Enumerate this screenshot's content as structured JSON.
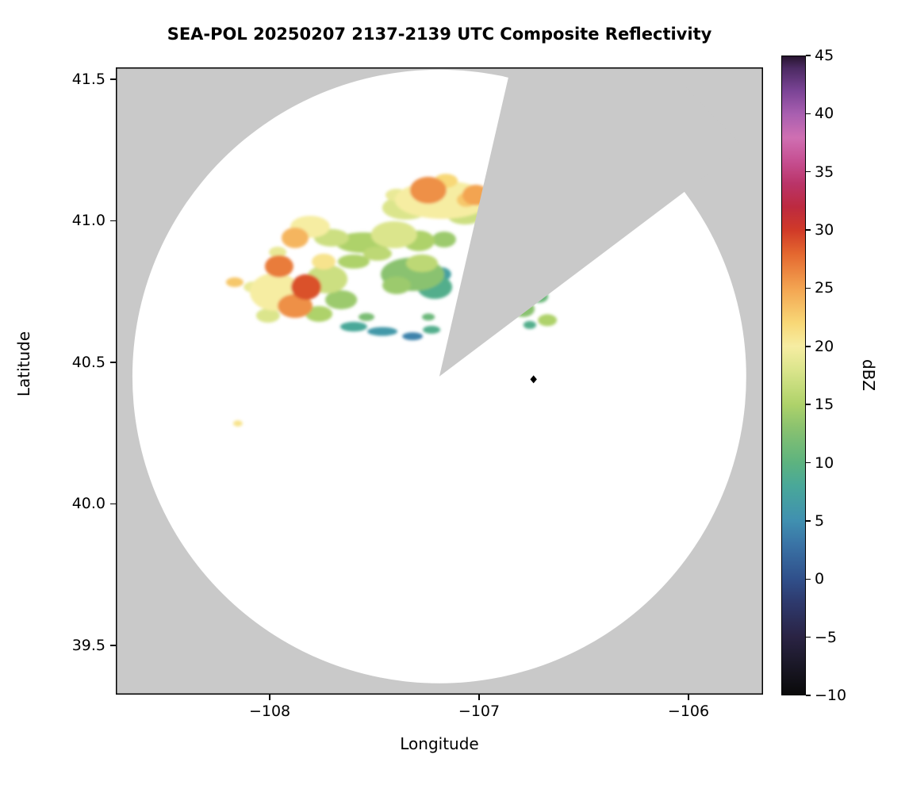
{
  "chart_data": {
    "type": "heatmap",
    "title": "SEA-POL 20250207 2137-2139 UTC Composite Reflectivity",
    "xlabel": "Longitude",
    "ylabel": "Latitude",
    "x_range": [
      -108.735,
      -105.644
    ],
    "y_range": [
      39.326,
      41.542
    ],
    "grid": false,
    "x_ticks": [
      {
        "value": -108,
        "label": "−108"
      },
      {
        "value": -107,
        "label": "−107"
      },
      {
        "value": -106,
        "label": "−106"
      }
    ],
    "y_ticks": [
      {
        "value": 41.5,
        "label": "41.5"
      },
      {
        "value": 41.0,
        "label": "41.0"
      },
      {
        "value": 40.5,
        "label": "40.5"
      },
      {
        "value": 40.0,
        "label": "40.0"
      },
      {
        "value": 39.5,
        "label": "39.5"
      }
    ],
    "outside_range_color": "#c9c9c9",
    "inside_range_color": "#ffffff",
    "radar": {
      "center_lon": -107.19,
      "center_lat": 40.45,
      "range_radius_deg_lat": 1.084,
      "blocked_sector_azimuth_deg": [
        13,
        53
      ]
    },
    "marker": {
      "lon": -106.74,
      "lat": 40.44,
      "symbol": "diamond",
      "color": "#000000"
    },
    "colorbar": {
      "label": "dBZ",
      "min": -10,
      "max": 45,
      "ticks": [
        {
          "value": -10,
          "label": "−10"
        },
        {
          "value": -5,
          "label": "−5"
        },
        {
          "value": 0,
          "label": "0"
        },
        {
          "value": 5,
          "label": "5"
        },
        {
          "value": 10,
          "label": "10"
        },
        {
          "value": 15,
          "label": "15"
        },
        {
          "value": 20,
          "label": "20"
        },
        {
          "value": 25,
          "label": "25"
        },
        {
          "value": 30,
          "label": "30"
        },
        {
          "value": 35,
          "label": "35"
        },
        {
          "value": 40,
          "label": "40"
        },
        {
          "value": 45,
          "label": "45"
        }
      ],
      "stops": [
        [
          -10,
          "#0a0a0a"
        ],
        [
          -7,
          "#1d1a2c"
        ],
        [
          -5,
          "#2a2344"
        ],
        [
          -2,
          "#2e3a6e"
        ],
        [
          0,
          "#30508b"
        ],
        [
          3,
          "#3a74a6"
        ],
        [
          5,
          "#4090b0"
        ],
        [
          8,
          "#49a899"
        ],
        [
          10,
          "#5db37f"
        ],
        [
          13,
          "#8ac26f"
        ],
        [
          15,
          "#aed26a"
        ],
        [
          18,
          "#dbe58c"
        ],
        [
          20,
          "#f6eda2"
        ],
        [
          22,
          "#f8d877"
        ],
        [
          25,
          "#f3a451"
        ],
        [
          28,
          "#e4672f"
        ],
        [
          30,
          "#d03a28"
        ],
        [
          32,
          "#bd2a3f"
        ],
        [
          34,
          "#ba3468"
        ],
        [
          36,
          "#c65092"
        ],
        [
          38,
          "#cf6fb2"
        ],
        [
          40,
          "#a95fb0"
        ],
        [
          42,
          "#7b4496"
        ],
        [
          44,
          "#4b2a62"
        ],
        [
          45,
          "#27142f"
        ]
      ]
    },
    "echo_fields": [
      "lon",
      "lat",
      "width_deg",
      "height_deg",
      "dbz"
    ],
    "echoes": [
      [
        -107.175,
        41.074,
        0.455,
        0.134,
        20
      ],
      [
        -107.243,
        41.108,
        0.174,
        0.095,
        26
      ],
      [
        -107.016,
        41.091,
        0.129,
        0.073,
        25
      ],
      [
        -107.349,
        41.046,
        0.227,
        0.084,
        18
      ],
      [
        -107.068,
        41.018,
        0.167,
        0.062,
        17
      ],
      [
        -107.159,
        41.141,
        0.114,
        0.05,
        22
      ],
      [
        -107.879,
        40.94,
        0.129,
        0.073,
        24
      ],
      [
        -107.807,
        40.979,
        0.189,
        0.078,
        20
      ],
      [
        -107.705,
        40.94,
        0.167,
        0.062,
        17
      ],
      [
        -107.553,
        40.923,
        0.265,
        0.073,
        15
      ],
      [
        -107.406,
        40.951,
        0.22,
        0.095,
        18
      ],
      [
        -107.288,
        40.929,
        0.152,
        0.073,
        15
      ],
      [
        -107.962,
        40.889,
        0.083,
        0.039,
        19
      ],
      [
        -107.318,
        40.811,
        0.303,
        0.118,
        13
      ],
      [
        -107.212,
        40.766,
        0.167,
        0.084,
        9
      ],
      [
        -107.273,
        40.85,
        0.152,
        0.062,
        16
      ],
      [
        -107.182,
        40.811,
        0.098,
        0.05,
        7
      ],
      [
        -107.394,
        40.772,
        0.136,
        0.062,
        14
      ],
      [
        -107.955,
        40.839,
        0.136,
        0.078,
        27
      ],
      [
        -107.826,
        40.766,
        0.144,
        0.09,
        29
      ],
      [
        -107.879,
        40.699,
        0.167,
        0.084,
        26
      ],
      [
        -107.974,
        40.749,
        0.242,
        0.134,
        20
      ],
      [
        -107.727,
        40.794,
        0.197,
        0.101,
        17
      ],
      [
        -107.659,
        40.721,
        0.152,
        0.067,
        14
      ],
      [
        -108.167,
        40.783,
        0.083,
        0.034,
        23
      ],
      [
        -108.076,
        40.766,
        0.098,
        0.039,
        19
      ],
      [
        -108.008,
        40.665,
        0.114,
        0.05,
        18
      ],
      [
        -107.765,
        40.671,
        0.129,
        0.056,
        15
      ],
      [
        -107.599,
        40.626,
        0.129,
        0.034,
        8
      ],
      [
        -107.462,
        40.609,
        0.144,
        0.031,
        6
      ],
      [
        -107.318,
        40.592,
        0.098,
        0.028,
        4
      ],
      [
        -107.227,
        40.615,
        0.083,
        0.028,
        9
      ],
      [
        -107.538,
        40.66,
        0.076,
        0.028,
        12
      ],
      [
        -107.242,
        40.66,
        0.061,
        0.025,
        11
      ],
      [
        -106.788,
        40.688,
        0.106,
        0.056,
        13
      ],
      [
        -106.712,
        40.733,
        0.083,
        0.045,
        11
      ],
      [
        -106.674,
        40.649,
        0.091,
        0.042,
        15
      ],
      [
        -106.758,
        40.632,
        0.061,
        0.028,
        9
      ],
      [
        -108.152,
        40.284,
        0.045,
        0.022,
        21
      ],
      [
        -107.599,
        40.856,
        0.152,
        0.05,
        15
      ],
      [
        -107.485,
        40.884,
        0.136,
        0.05,
        16
      ],
      [
        -107.167,
        40.934,
        0.114,
        0.056,
        14
      ],
      [
        -107.061,
        41.074,
        0.091,
        0.05,
        23
      ],
      [
        -107.394,
        41.091,
        0.106,
        0.045,
        19
      ],
      [
        -107.742,
        40.856,
        0.114,
        0.056,
        21
      ]
    ]
  }
}
